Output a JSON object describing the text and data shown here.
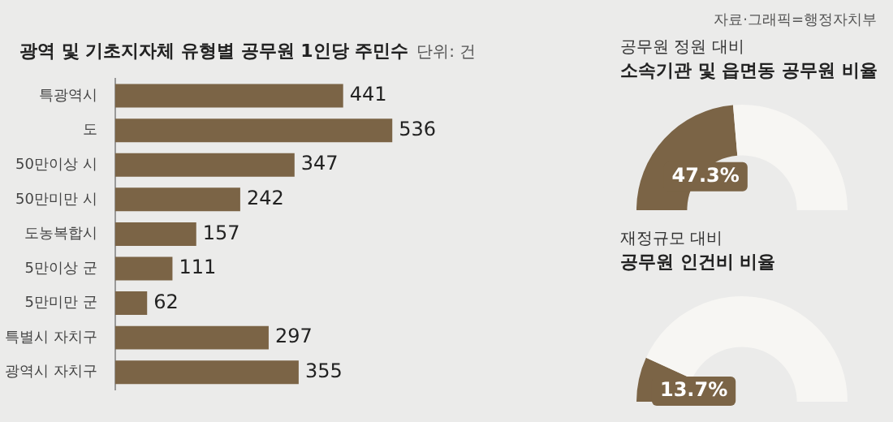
{
  "chart_data": [
    {
      "type": "bar",
      "orientation": "horizontal",
      "title": "광역 및 기초지자체 유형별 공무원 1인당 주민수",
      "categories": [
        "특광역시",
        "도",
        "50만이상 시",
        "50만미만 시",
        "도농복합시",
        "5만이상 군",
        "5만미만 군",
        "특별시 자치구",
        "광역시 자치구"
      ],
      "values": [
        441,
        536,
        347,
        242,
        157,
        111,
        62,
        297,
        355
      ],
      "color": "#7b6446",
      "data_labels": true,
      "legend": false,
      "annotations": [
        "단위: 건",
        "자료·그래픽=행정자치부"
      ]
    },
    {
      "type": "donut",
      "subtitle": "공무원 정원 대비",
      "title": "소속기관 및 읍면동 공무원 비율",
      "categories": [
        null,
        null
      ],
      "values": [
        47.3,
        52.7
      ],
      "colors": [
        "#7b6446",
        "#f7f6f3"
      ],
      "value_labels": [
        "47.3%",
        null
      ],
      "legend": false
    },
    {
      "type": "donut",
      "subtitle": "재정규모 대비",
      "title": "공무원 인건비 비율",
      "categories": [
        null,
        null
      ],
      "values": [
        13.7,
        86.3
      ],
      "colors": [
        "#7b6446",
        "#f7f6f3"
      ],
      "value_labels": [
        "13.7%",
        null
      ],
      "legend": false
    }
  ]
}
